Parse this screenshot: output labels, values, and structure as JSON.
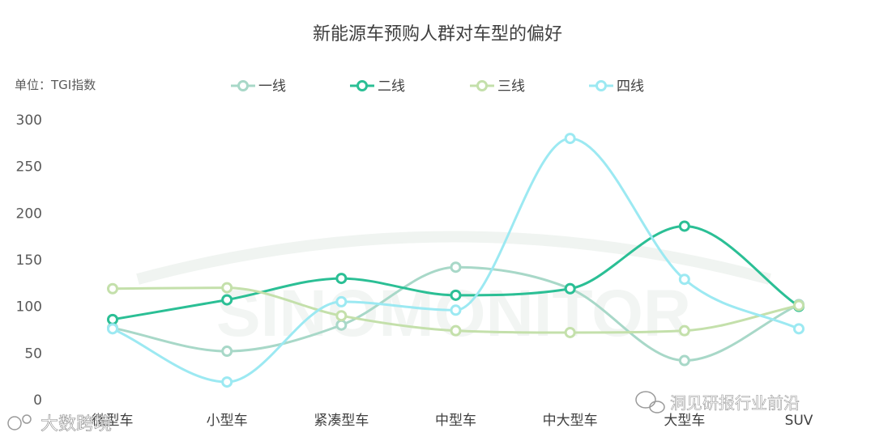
{
  "watermarks": {
    "bottom_left": "大数跨境",
    "bottom_right": "洞见研报行业前沿",
    "background": "SINOMONITOR"
  },
  "chart_data": {
    "type": "line",
    "title": "新能源车预购人群对车型的偏好",
    "unit_label": "单位：TGI指数",
    "categories": [
      "微型车",
      "小型车",
      "紧凑型车",
      "中型车",
      "中大型车",
      "大型车",
      "SUV"
    ],
    "ylim": [
      0,
      300
    ],
    "yticks": [
      0,
      50,
      100,
      150,
      200,
      250,
      300
    ],
    "grid": false,
    "legend_position": "top",
    "series": [
      {
        "name": "一线",
        "color": "#a8d8c8",
        "values": [
          77,
          52,
          80,
          142,
          119,
          42,
          102
        ]
      },
      {
        "name": "二线",
        "color": "#2bbf95",
        "values": [
          86,
          107,
          130,
          112,
          119,
          186,
          100
        ]
      },
      {
        "name": "三线",
        "color": "#c4e0ab",
        "values": [
          119,
          120,
          90,
          74,
          72,
          74,
          101
        ]
      },
      {
        "name": "四线",
        "color": "#9ce9f2",
        "values": [
          76,
          19,
          105,
          96,
          280,
          129,
          76
        ]
      }
    ]
  }
}
